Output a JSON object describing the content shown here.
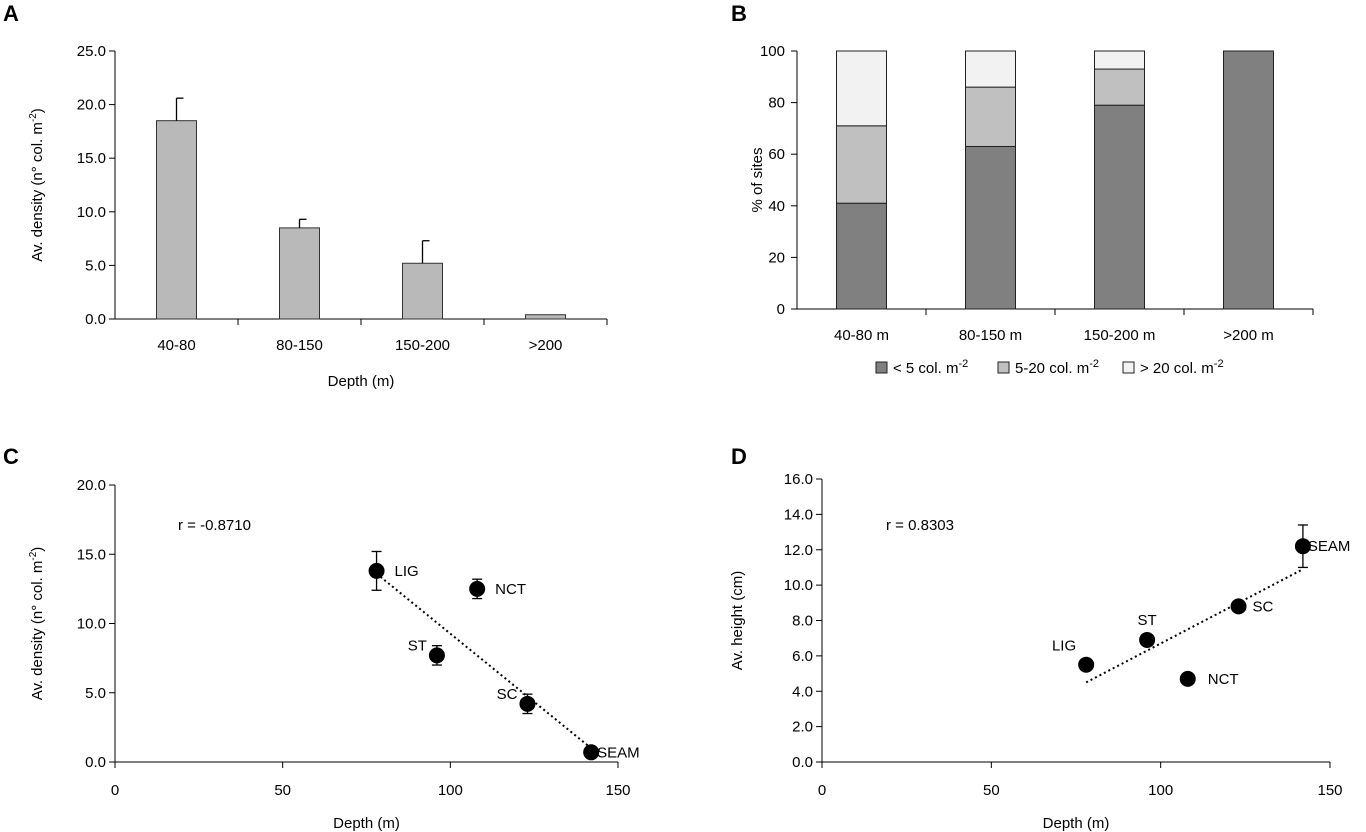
{
  "chart_data": [
    {
      "panel": "A",
      "type": "bar",
      "categories": [
        "40-80",
        "80-150",
        "150-200",
        ">200"
      ],
      "values": [
        18.5,
        8.5,
        5.2,
        0.4
      ],
      "errors": [
        2.1,
        0.8,
        2.1,
        0
      ],
      "xlabel": "Depth (m)",
      "ylabel": "Av. density (n° col. m⁻²)",
      "ylim": [
        0,
        25
      ],
      "yticks": [
        "0.0",
        "5.0",
        "10.0",
        "15.0",
        "20.0",
        "25.0"
      ],
      "colors": {
        "bar": "#b9b9b9"
      }
    },
    {
      "panel": "B",
      "type": "bar",
      "stacked": true,
      "categories": [
        "40-80 m",
        "80-150 m",
        "150-200 m",
        ">200 m"
      ],
      "ylabel": "% of sites",
      "ylim": [
        0,
        100
      ],
      "yticks": [
        "0",
        "20",
        "40",
        "60",
        "80",
        "100"
      ],
      "series": [
        {
          "name": "< 5 col. m",
          "sup": "-2",
          "values": [
            41,
            63,
            79,
            100
          ],
          "color": "#808080"
        },
        {
          "name": "5-20 col. m",
          "sup": "-2",
          "values": [
            30,
            23,
            14,
            0
          ],
          "color": "#c0c0c0"
        },
        {
          "name": "> 20 col. m",
          "sup": "-2",
          "values": [
            29,
            14,
            7,
            0
          ],
          "color": "#f2f2f2"
        }
      ],
      "legend": "bottom"
    },
    {
      "panel": "C",
      "type": "scatter",
      "points": [
        {
          "label": "LIG",
          "x": 78,
          "y": 13.8,
          "err": 1.4
        },
        {
          "label": "NCT",
          "x": 108,
          "y": 12.5,
          "err": 0.7
        },
        {
          "label": "ST",
          "x": 96,
          "y": 7.7,
          "err": 0.7
        },
        {
          "label": "SC",
          "x": 123,
          "y": 4.2,
          "err": 0.7
        },
        {
          "label": "SEAM",
          "x": 142,
          "y": 0.7,
          "err": 0
        }
      ],
      "trendline": {
        "x1": 78,
        "y1": 13.6,
        "x2": 144,
        "y2": 0.6
      },
      "annotation": "r = -0.8710",
      "xlabel": "Depth (m)",
      "ylabel": "Av. density (n° col. m⁻²)",
      "xlim": [
        0,
        150
      ],
      "ylim": [
        0,
        20
      ],
      "xticks": [
        "0",
        "50",
        "100",
        "150"
      ],
      "yticks": [
        "0.0",
        "5.0",
        "10.0",
        "15.0",
        "20.0"
      ]
    },
    {
      "panel": "D",
      "type": "scatter",
      "points": [
        {
          "label": "LIG",
          "x": 78,
          "y": 5.5,
          "err": 0
        },
        {
          "label": "ST",
          "x": 96,
          "y": 6.9,
          "err": 0
        },
        {
          "label": "NCT",
          "x": 108,
          "y": 4.7,
          "err": 0
        },
        {
          "label": "SC",
          "x": 123,
          "y": 8.8,
          "err": 0
        },
        {
          "label": "SEAM",
          "x": 142,
          "y": 12.2,
          "err": 1.2
        }
      ],
      "trendline": {
        "x1": 78,
        "y1": 4.5,
        "x2": 142,
        "y2": 10.9
      },
      "annotation": "r = 0.8303",
      "xlabel": "Depth (m)",
      "ylabel": "Av. height (cm)",
      "xlim": [
        0,
        150
      ],
      "ylim": [
        0,
        16
      ],
      "xticks": [
        "0",
        "50",
        "100",
        "150"
      ],
      "yticks": [
        "0.0",
        "2.0",
        "4.0",
        "6.0",
        "8.0",
        "10.0",
        "12.0",
        "14.0",
        "16.0"
      ]
    }
  ]
}
